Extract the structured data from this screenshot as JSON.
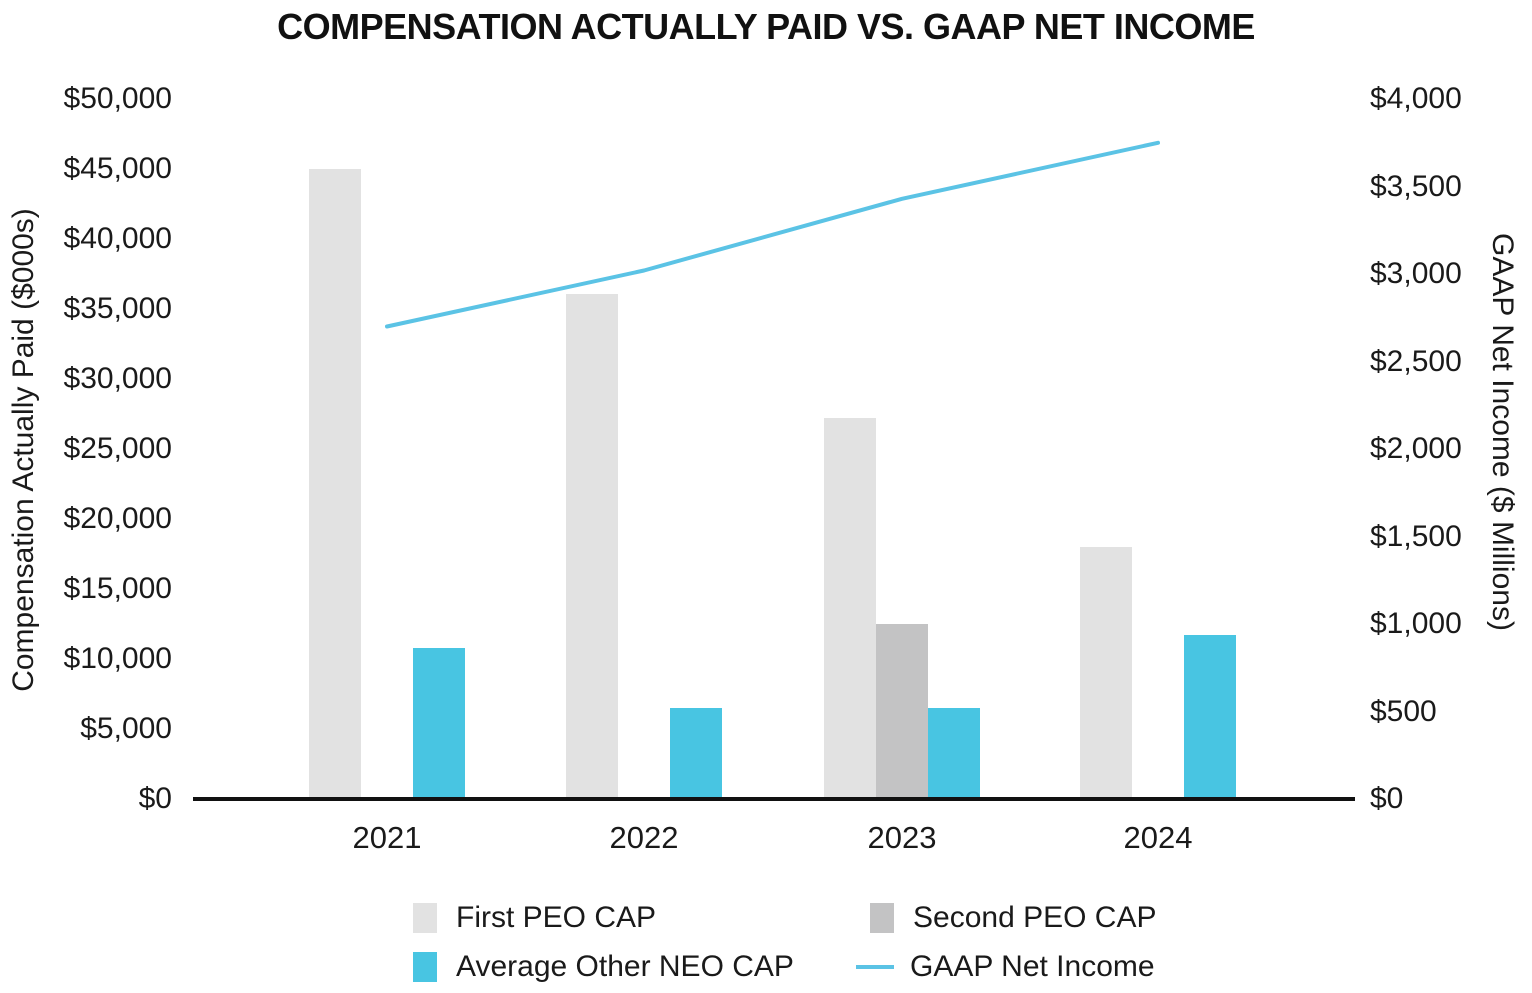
{
  "title": "COMPENSATION ACTUALLY PAID VS. GAAP NET INCOME",
  "chart_data": {
    "type": "combo-bar-line",
    "title": "COMPENSATION ACTUALLY PAID VS. GAAP NET INCOME",
    "categories": [
      "2021",
      "2022",
      "2023",
      "2024"
    ],
    "series": [
      {
        "name": "First PEO CAP",
        "type": "bar",
        "axis": "left",
        "color": "#E2E2E2",
        "values": [
          45000,
          36100,
          27200,
          18000
        ]
      },
      {
        "name": "Second PEO CAP",
        "type": "bar",
        "axis": "left",
        "color": "#C3C3C4",
        "values": [
          null,
          null,
          12500,
          null
        ]
      },
      {
        "name": "Average Other NEO CAP",
        "type": "bar",
        "axis": "left",
        "color": "#48C5E2",
        "values": [
          10800,
          6500,
          6500,
          11700
        ]
      },
      {
        "name": "GAAP Net Income",
        "type": "line",
        "axis": "right",
        "color": "#5BC3E5",
        "values": [
          2700,
          3020,
          3430,
          3750
        ]
      }
    ],
    "left_axis": {
      "title": "Compensation Actually Paid ($000s)",
      "range": [
        0,
        50000
      ],
      "tick_step": 5000,
      "ticks": [
        "$0",
        "$5,000",
        "$10,000",
        "$15,000",
        "$20,000",
        "$25,000",
        "$30,000",
        "$35,000",
        "$40,000",
        "$45,000",
        "$50,000"
      ]
    },
    "right_axis": {
      "title": "GAAP Net Income ($ Millions)",
      "range": [
        0,
        4000
      ],
      "tick_step": 500,
      "ticks": [
        "$0",
        "$500",
        "$1,000",
        "$1,500",
        "$2,000",
        "$2,500",
        "$3,000",
        "$3,500",
        "$4,000"
      ]
    },
    "layout_hints": {
      "grid": "off",
      "legend_position": "bottom",
      "legend_columns": 2
    }
  }
}
